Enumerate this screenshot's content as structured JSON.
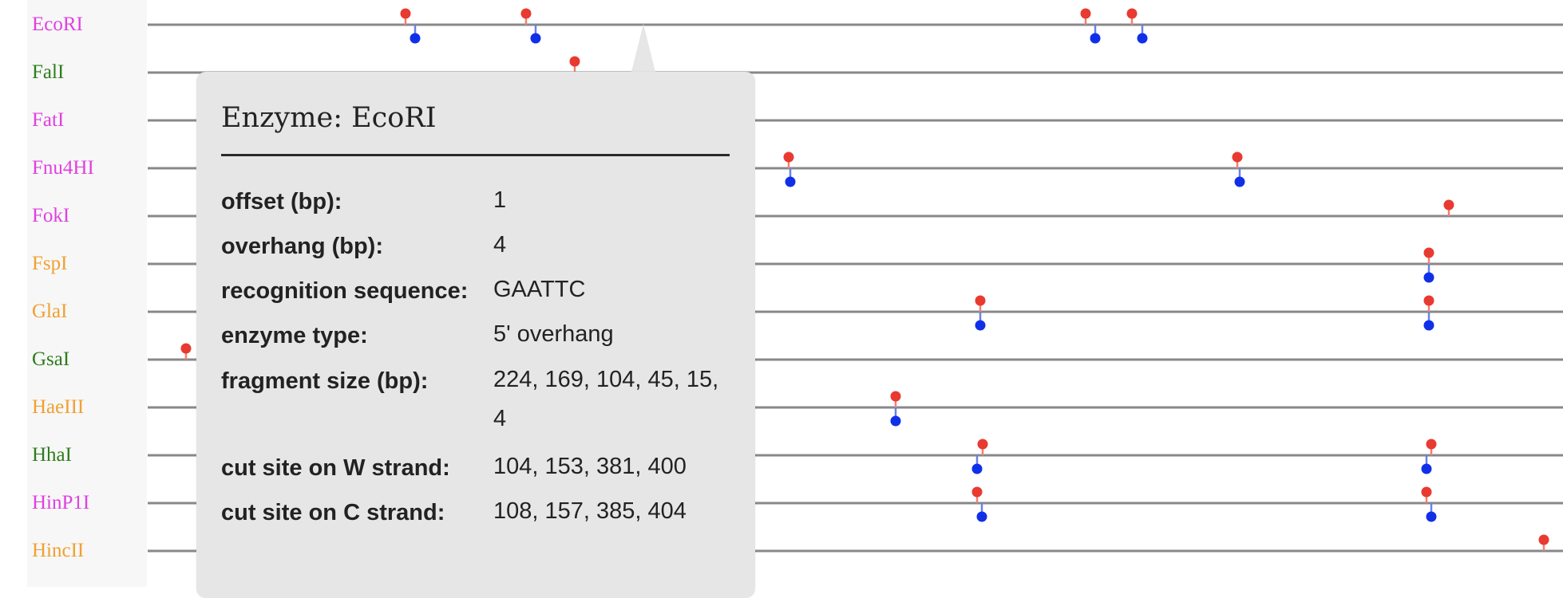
{
  "enzymes": [
    {
      "name": "EcoRI",
      "color": "#e040e0"
    },
    {
      "name": "FalI",
      "color": "#2e7d1a"
    },
    {
      "name": "FatI",
      "color": "#e040e0"
    },
    {
      "name": "Fnu4HI",
      "color": "#e040e0"
    },
    {
      "name": "FokI",
      "color": "#e040e0"
    },
    {
      "name": "FspI",
      "color": "#f0a030"
    },
    {
      "name": "GlaI",
      "color": "#f0a030"
    },
    {
      "name": "GsaI",
      "color": "#2e7d1a"
    },
    {
      "name": "HaeIII",
      "color": "#f0a030"
    },
    {
      "name": "HhaI",
      "color": "#2e7d1a"
    },
    {
      "name": "HinP1I",
      "color": "#e040e0"
    },
    {
      "name": "HincII",
      "color": "#f0a030"
    }
  ],
  "colors": {
    "w_strand": "#e83a30",
    "c_strand": "#1030e8",
    "track": "#888888"
  },
  "tooltip": {
    "title": "Enzyme: EcoRI",
    "rows": [
      {
        "key": "offset (bp):",
        "value": "1"
      },
      {
        "key": "overhang (bp):",
        "value": "4"
      },
      {
        "key": "recognition sequence:",
        "value": "GAATTC"
      },
      {
        "key": "enzyme type:",
        "value": "5' overhang"
      },
      {
        "key": "fragment size (bp):",
        "value": "224, 169, 104, 45, 15, 4"
      },
      {
        "key": "cut site on W strand:",
        "value": "104, 153, 381, 400"
      },
      {
        "key": "cut site on C strand:",
        "value": "108, 157, 385, 404"
      }
    ]
  }
}
